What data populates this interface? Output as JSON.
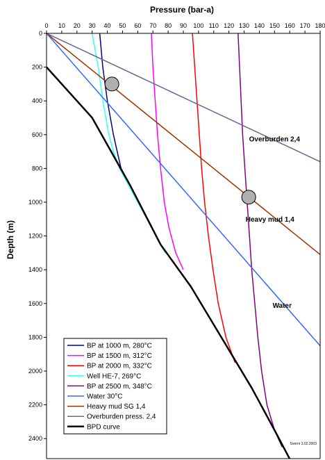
{
  "chart_data": {
    "type": "line",
    "xlabel": "Pressure (bar-a)",
    "ylabel": "Depth (m)",
    "xlim": [
      0,
      180
    ],
    "ylim": [
      0,
      2500
    ],
    "y_inverted": true,
    "x_axis_position": "top",
    "x_ticks": [
      "0",
      "10",
      "20",
      "30",
      "40",
      "50",
      "60",
      "70",
      "80",
      "90",
      "100",
      "110",
      "120",
      "130",
      "140",
      "150",
      "160",
      "170",
      "180"
    ],
    "y_ticks": [
      "0",
      "200",
      "400",
      "600",
      "800",
      "1000",
      "1200",
      "1400",
      "1600",
      "1800",
      "2000",
      "2200",
      "2400"
    ],
    "grid": false,
    "legend_position": "bottom-left",
    "series": [
      {
        "name": "BP at 1000 m, 280°C",
        "color": "#000080",
        "points": [
          [
            35,
            0
          ],
          [
            37,
            200
          ],
          [
            40,
            400
          ],
          [
            44,
            600
          ],
          [
            49,
            800
          ],
          [
            55,
            900
          ]
        ]
      },
      {
        "name": "BP at 1500 m, 312°C",
        "color": "#ff00ff",
        "points": [
          [
            69,
            0
          ],
          [
            70,
            200
          ],
          [
            71.5,
            400
          ],
          [
            73,
            600
          ],
          [
            75,
            800
          ],
          [
            77.5,
            1000
          ],
          [
            80.5,
            1150
          ],
          [
            85,
            1300
          ],
          [
            90,
            1400
          ]
        ]
      },
      {
        "name": "BP at 2000 m, 332°C",
        "color": "#ff0000",
        "points": [
          [
            96,
            0
          ],
          [
            97.5,
            200
          ],
          [
            99,
            400
          ],
          [
            100.5,
            600
          ],
          [
            102,
            800
          ],
          [
            104,
            1000
          ],
          [
            106.5,
            1200
          ],
          [
            109.5,
            1400
          ],
          [
            113,
            1600
          ],
          [
            118,
            1800
          ],
          [
            124,
            1950
          ]
        ]
      },
      {
        "name": "Well HE-7, 269°C",
        "color": "#33ffff",
        "points": [
          [
            30,
            0
          ],
          [
            32,
            100
          ],
          [
            34,
            200
          ],
          [
            35.5,
            300
          ],
          [
            37,
            400
          ],
          [
            39,
            500
          ],
          [
            41,
            600
          ],
          [
            44,
            700
          ],
          [
            48,
            800
          ],
          [
            54,
            900
          ],
          [
            60,
            1000
          ],
          [
            66,
            1100
          ],
          [
            72,
            1200
          ],
          [
            78,
            1300
          ]
        ]
      },
      {
        "name": "BP at 2500 m, 348°C",
        "color": "#800080",
        "points": [
          [
            126,
            0
          ],
          [
            127,
            200
          ],
          [
            128,
            400
          ],
          [
            129,
            600
          ],
          [
            130.5,
            800
          ],
          [
            132,
            1000
          ],
          [
            133.5,
            1200
          ],
          [
            135,
            1400
          ],
          [
            137,
            1600
          ],
          [
            139,
            1800
          ],
          [
            141.5,
            2000
          ],
          [
            145,
            2200
          ],
          [
            150,
            2350
          ],
          [
            155,
            2450
          ]
        ]
      },
      {
        "name": "Water 30°C",
        "color": "#3366ff",
        "points": [
          [
            0,
            0
          ],
          [
            180,
            1850
          ]
        ]
      },
      {
        "name": "Heavy mud SG 1,4",
        "color": "#993300",
        "points": [
          [
            0,
            0
          ],
          [
            180,
            1310
          ]
        ]
      },
      {
        "name": "Overburden press. 2,4",
        "color": "#666699",
        "points": [
          [
            0,
            0
          ],
          [
            180,
            760
          ]
        ]
      },
      {
        "name": "BPD curve",
        "color": "#000000",
        "points": [
          [
            0,
            200
          ],
          [
            30,
            500
          ],
          [
            55,
            900
          ],
          [
            75,
            1250
          ],
          [
            95,
            1500
          ],
          [
            115,
            1800
          ],
          [
            135,
            2100
          ],
          [
            150,
            2350
          ],
          [
            160,
            2520
          ]
        ]
      }
    ],
    "markers": [
      {
        "x": 43,
        "y": 300,
        "color": "#b0b0b0"
      },
      {
        "x": 133,
        "y": 970,
        "color": "#b0b0b0"
      }
    ],
    "annotations": [
      {
        "text": "Overburden 2,4",
        "x": 150,
        "y": 640
      },
      {
        "text": "Heavy mud 1,4",
        "x": 147,
        "y": 1115
      },
      {
        "text": "Water",
        "x": 155,
        "y": 1625
      }
    ],
    "credit": "Sverrir 3.02.2003"
  }
}
